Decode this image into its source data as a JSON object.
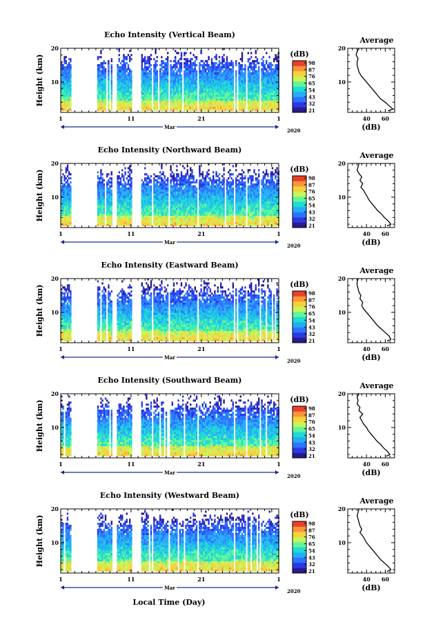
{
  "figure": {
    "xlabel": "Local Time (Day)",
    "year": "2020",
    "month": "Mar"
  },
  "colorbar": {
    "unit": "(dB)",
    "ticks": [
      "98",
      "87",
      "76",
      "65",
      "54",
      "43",
      "32",
      "21"
    ],
    "colors": [
      "#2a1b8c",
      "#2c38e6",
      "#2d73ff",
      "#23aef6",
      "#1fdbd3",
      "#61f59a",
      "#c8f45a",
      "#f5d13c",
      "#f8953a",
      "#e8402a"
    ]
  },
  "chart_data": [
    {
      "type": "heatmap",
      "title": "Echo Intensity (Vertical Beam)",
      "ylabel": "Height (km)",
      "xlabel": "Mar",
      "xticks": [
        "1",
        "11",
        "21",
        "1"
      ],
      "ylim": [
        1,
        20
      ],
      "yticks": [
        10,
        20
      ],
      "zlim": [
        21,
        98
      ],
      "zunit": "dB",
      "gaps_days": [
        [
          2.3,
          6.1
        ],
        [
          8.3,
          8.8
        ],
        [
          11.0,
          12.3
        ],
        [
          13.8,
          14.1
        ],
        [
          16.2,
          16.5
        ],
        [
          20.3,
          20.5
        ],
        [
          25.4,
          25.7
        ],
        [
          27.3,
          27.5
        ],
        [
          29.2,
          29.4
        ]
      ],
      "average_profile": {
        "title": "Average",
        "xlabel": "(dB)",
        "xticks": [
          40,
          60
        ],
        "xlim": [
          20,
          70
        ],
        "ylim": [
          1,
          20
        ],
        "yticks": [
          10,
          20
        ],
        "height_km": [
          1.5,
          2,
          3,
          4,
          5,
          6,
          7,
          8,
          9,
          10,
          11,
          12,
          13,
          14,
          15,
          16,
          17,
          18,
          19,
          20
        ],
        "db": [
          63,
          68,
          64,
          60,
          55,
          52,
          49,
          46,
          43,
          40,
          37,
          34,
          32,
          31,
          30,
          30,
          31,
          29,
          30,
          32
        ]
      }
    },
    {
      "type": "heatmap",
      "title": "Echo Intensity (Northward Beam)",
      "ylabel": "Height (km)",
      "xlabel": "Mar",
      "xticks": [
        "1",
        "11",
        "21",
        "1"
      ],
      "ylim": [
        1,
        20
      ],
      "yticks": [
        10,
        20
      ],
      "zlim": [
        21,
        98
      ],
      "zunit": "dB",
      "gaps_days": [
        [
          2.3,
          6.1
        ],
        [
          8.3,
          8.8
        ],
        [
          11.0,
          12.3
        ],
        [
          13.8,
          14.1
        ],
        [
          16.2,
          16.5
        ],
        [
          20.3,
          20.5
        ],
        [
          25.4,
          25.7
        ],
        [
          27.3,
          27.5
        ],
        [
          29.2,
          29.4
        ]
      ],
      "average_profile": {
        "title": "Average",
        "xlabel": "(dB)",
        "xticks": [
          40,
          60
        ],
        "xlim": [
          20,
          70
        ],
        "ylim": [
          1,
          20
        ],
        "yticks": [
          10,
          20
        ],
        "height_km": [
          1.5,
          2,
          3,
          4,
          5,
          6,
          7,
          8,
          9,
          10,
          11,
          12,
          13,
          14,
          15,
          16,
          17,
          18,
          19,
          20
        ],
        "db": [
          62,
          66,
          63,
          59,
          56,
          52,
          49,
          46,
          43,
          41,
          39,
          37,
          34,
          36,
          33,
          35,
          32,
          30,
          31,
          32
        ]
      }
    },
    {
      "type": "heatmap",
      "title": "Echo Intensity (Eastward Beam)",
      "ylabel": "Height (km)",
      "xlabel": "Mar",
      "xticks": [
        "1",
        "11",
        "21",
        "1"
      ],
      "ylim": [
        1,
        20
      ],
      "yticks": [
        10,
        20
      ],
      "zlim": [
        21,
        98
      ],
      "zunit": "dB",
      "gaps_days": [
        [
          2.3,
          6.1
        ],
        [
          8.3,
          8.8
        ],
        [
          11.0,
          12.3
        ],
        [
          13.8,
          14.1
        ],
        [
          16.2,
          16.5
        ],
        [
          20.3,
          20.5
        ],
        [
          25.4,
          25.7
        ],
        [
          27.3,
          27.5
        ],
        [
          29.2,
          29.4
        ]
      ],
      "average_profile": {
        "title": "Average",
        "xlabel": "(dB)",
        "xticks": [
          40,
          60
        ],
        "xlim": [
          20,
          70
        ],
        "ylim": [
          1,
          20
        ],
        "yticks": [
          10,
          20
        ],
        "height_km": [
          1.5,
          2,
          3,
          4,
          5,
          6,
          7,
          8,
          9,
          10,
          11,
          12,
          13,
          14,
          15,
          16,
          17,
          18,
          19,
          20
        ],
        "db": [
          62,
          66,
          64,
          60,
          56,
          52,
          49,
          46,
          43,
          40,
          37,
          35,
          36,
          33,
          34,
          32,
          31,
          30,
          30,
          31
        ]
      }
    },
    {
      "type": "heatmap",
      "title": "Echo Intensity (Southward Beam)",
      "ylabel": "Height (km)",
      "xlabel": "Mar",
      "xticks": [
        "1",
        "11",
        "21",
        "1"
      ],
      "ylim": [
        1,
        20
      ],
      "yticks": [
        10,
        20
      ],
      "zlim": [
        21,
        98
      ],
      "zunit": "dB",
      "gaps_days": [
        [
          2.3,
          6.1
        ],
        [
          8.3,
          8.8
        ],
        [
          11.0,
          12.3
        ],
        [
          13.8,
          14.1
        ],
        [
          16.2,
          16.5
        ],
        [
          20.3,
          20.5
        ],
        [
          25.4,
          25.7
        ],
        [
          27.3,
          27.5
        ],
        [
          29.2,
          29.4
        ]
      ],
      "average_profile": {
        "title": "Average",
        "xlabel": "(dB)",
        "xticks": [
          40,
          60
        ],
        "xlim": [
          20,
          70
        ],
        "ylim": [
          1,
          20
        ],
        "yticks": [
          10,
          20
        ],
        "height_km": [
          1.5,
          2,
          3,
          4,
          5,
          6,
          7,
          8,
          9,
          10,
          11,
          12,
          13,
          14,
          15,
          16,
          17,
          18,
          19,
          20
        ],
        "db": [
          61,
          65,
          62,
          58,
          55,
          51,
          48,
          45,
          42,
          40,
          37,
          35,
          33,
          36,
          32,
          33,
          30,
          31,
          30,
          32
        ]
      }
    },
    {
      "type": "heatmap",
      "title": "Echo Intensity (Westward Beam)",
      "ylabel": "Height (km)",
      "xlabel": "Mar",
      "xticks": [
        "1",
        "11",
        "21",
        "1"
      ],
      "ylim": [
        1,
        20
      ],
      "yticks": [
        10,
        20
      ],
      "zlim": [
        21,
        98
      ],
      "zunit": "dB",
      "gaps_days": [
        [
          2.3,
          6.1
        ],
        [
          8.3,
          8.8
        ],
        [
          11.0,
          12.3
        ],
        [
          13.8,
          14.1
        ],
        [
          16.2,
          16.5
        ],
        [
          20.3,
          20.5
        ],
        [
          25.4,
          25.7
        ],
        [
          27.3,
          27.5
        ],
        [
          29.2,
          29.4
        ]
      ],
      "average_profile": {
        "title": "Average",
        "xlabel": "(dB)",
        "xticks": [
          40,
          60
        ],
        "xlim": [
          20,
          70
        ],
        "ylim": [
          1,
          20
        ],
        "yticks": [
          10,
          20
        ],
        "height_km": [
          1.5,
          2,
          3,
          4,
          5,
          6,
          7,
          8,
          9,
          10,
          11,
          12,
          13,
          14,
          15,
          16,
          17,
          18,
          19,
          20
        ],
        "db": [
          62,
          66,
          63,
          59,
          55,
          52,
          49,
          46,
          43,
          40,
          38,
          36,
          33,
          35,
          33,
          32,
          31,
          30,
          31,
          32
        ]
      }
    }
  ]
}
